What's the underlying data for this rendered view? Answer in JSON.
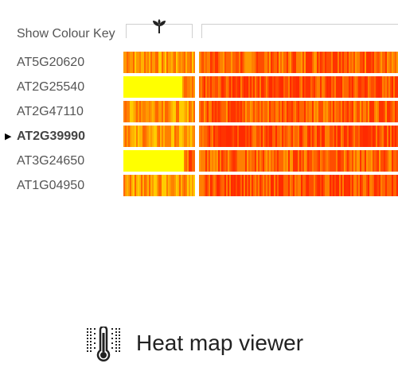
{
  "header": {
    "colour_key_label": "Show Colour Key",
    "column_icon": "seedling-icon"
  },
  "genes": [
    {
      "id": "AT5G20620",
      "selected": false,
      "left_yellow_fraction": 0.0
    },
    {
      "id": "AT2G25540",
      "selected": false,
      "left_yellow_fraction": 0.82
    },
    {
      "id": "AT2G47110",
      "selected": false,
      "left_yellow_fraction": 0.0
    },
    {
      "id": "AT2G39990",
      "selected": true,
      "left_yellow_fraction": 0.0
    },
    {
      "id": "AT3G24650",
      "selected": false,
      "left_yellow_fraction": 0.85
    },
    {
      "id": "AT1G04950",
      "selected": false,
      "left_yellow_fraction": 0.0
    }
  ],
  "colors": {
    "low": "#ffff00",
    "mid": "#ff9900",
    "high": "#ff2a00"
  },
  "footer": {
    "icon": "thermometer-heatmap-icon",
    "title": "Heat map viewer"
  }
}
